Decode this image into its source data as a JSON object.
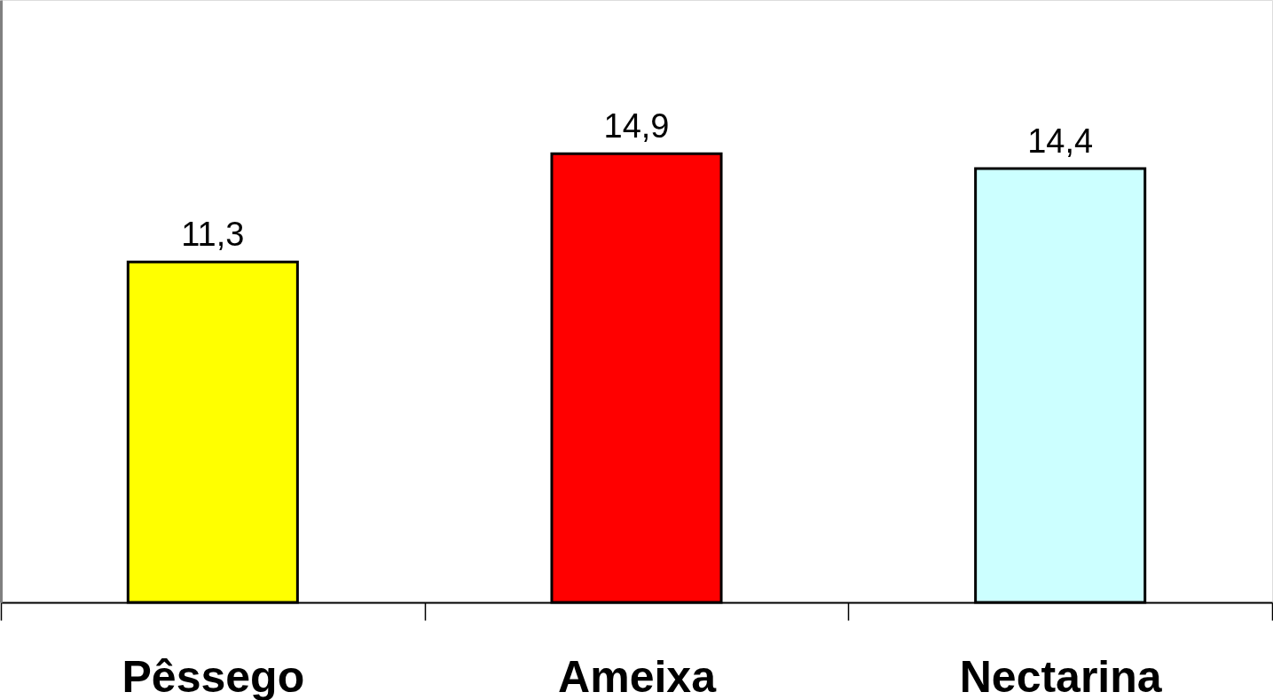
{
  "chart_data": {
    "type": "bar",
    "categories": [
      "Pêssego",
      "Ameixa",
      "Nectarina"
    ],
    "values": [
      11.3,
      14.9,
      14.4
    ],
    "colors": [
      "#ffff00",
      "#ff0000",
      "#ccffff"
    ],
    "value_labels": [
      "11,3",
      "14,9",
      "14,4"
    ],
    "ylim": [
      0,
      20
    ],
    "tick_labels": "x"
  }
}
